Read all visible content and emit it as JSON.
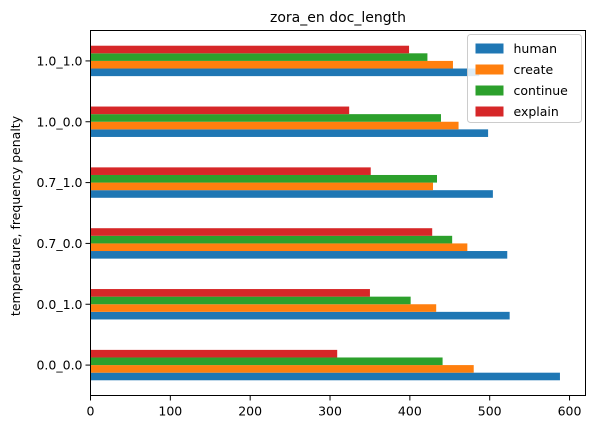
{
  "chart_data": {
    "type": "bar",
    "orientation": "horizontal",
    "title": "zora_en doc_length",
    "xlabel": "",
    "ylabel": "temperature, frequency penalty",
    "categories": [
      "0.0_0.0",
      "0.0_1.0",
      "0.7_0.0",
      "0.7_1.0",
      "1.0_0.0",
      "1.0_1.0"
    ],
    "xlim": [
      0,
      620
    ],
    "xticks": [
      0,
      100,
      200,
      300,
      400,
      500,
      600
    ],
    "grid": false,
    "legend_position": "top-right",
    "series": [
      {
        "name": "human",
        "color": "#1f77b4",
        "values": [
          588,
          525,
          522,
          504,
          498,
          487
        ]
      },
      {
        "name": "create",
        "color": "#ff7f0e",
        "values": [
          480,
          433,
          472,
          429,
          461,
          454
        ]
      },
      {
        "name": "continue",
        "color": "#2ca02c",
        "values": [
          441,
          401,
          453,
          434,
          439,
          422
        ]
      },
      {
        "name": "explain",
        "color": "#d62728",
        "values": [
          309,
          350,
          428,
          351,
          324,
          399
        ]
      }
    ]
  }
}
